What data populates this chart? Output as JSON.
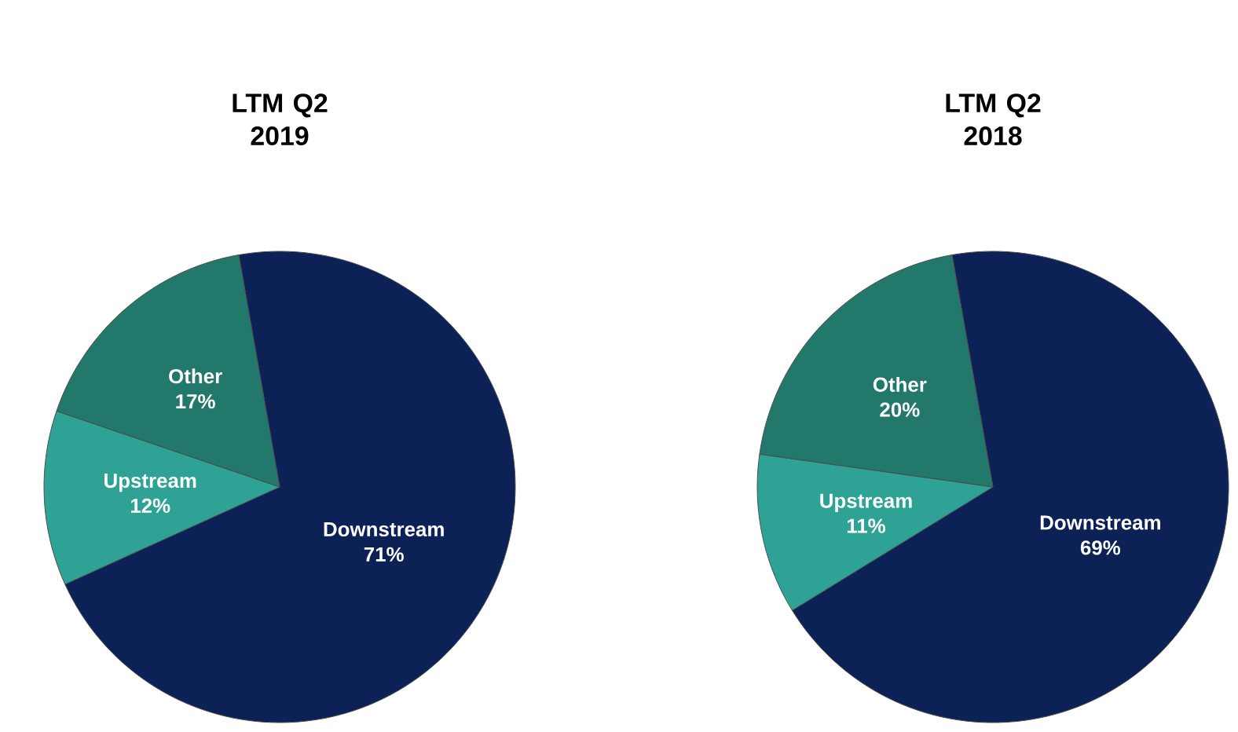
{
  "chart_data": [
    {
      "type": "pie",
      "title": "LTM Q2 2019",
      "categories": [
        "Downstream",
        "Upstream",
        "Other"
      ],
      "values": [
        71,
        12,
        17
      ],
      "value_labels": [
        "71%",
        "12%",
        "17%"
      ],
      "colors": [
        "#0c2257",
        "#2ea395",
        "#21786b"
      ]
    },
    {
      "type": "pie",
      "title": "LTM Q2 2018",
      "categories": [
        "Downstream",
        "Upstream",
        "Other"
      ],
      "values": [
        69,
        11,
        20
      ],
      "value_labels": [
        "69%",
        "11%",
        "20%"
      ],
      "colors": [
        "#0c2257",
        "#2ea395",
        "#21786b"
      ]
    }
  ]
}
